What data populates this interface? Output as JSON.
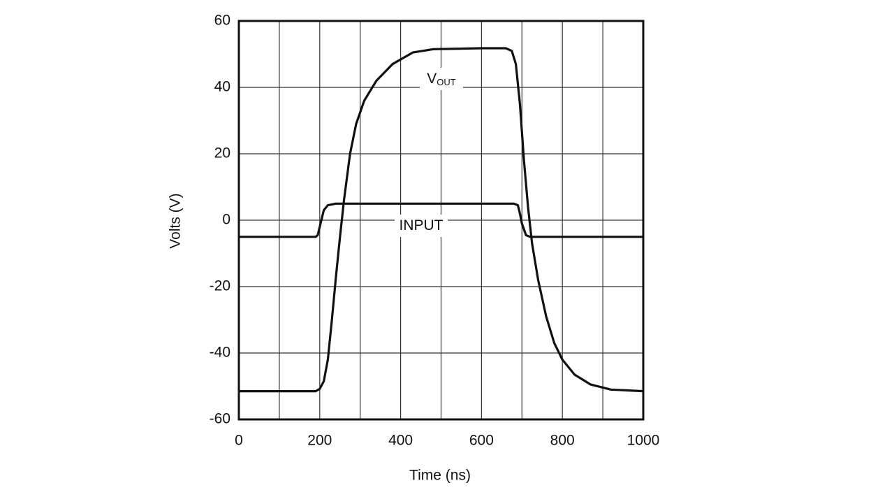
{
  "chart_data": {
    "type": "line",
    "xlabel": "Time (ns)",
    "ylabel": "Volts (V)",
    "xlim": [
      0,
      1000
    ],
    "xticks": [
      0,
      200,
      400,
      600,
      800,
      1000
    ],
    "ylim": [
      -60,
      60
    ],
    "yticks": [
      -60,
      -40,
      -20,
      0,
      20,
      40,
      60
    ],
    "grid": true,
    "series": [
      {
        "name": "V",
        "subscript": "OUT",
        "color": "#111111",
        "x": [
          0,
          190,
          200,
          210,
          220,
          230,
          240,
          250,
          260,
          275,
          290,
          310,
          340,
          380,
          430,
          480,
          600,
          660,
          675,
          685,
          695,
          705,
          715,
          725,
          740,
          760,
          780,
          800,
          830,
          870,
          920,
          1000
        ],
        "values": [
          -51.5,
          -51.5,
          -50.8,
          -48.5,
          -42,
          -30,
          -17,
          -5,
          6,
          20,
          29,
          36,
          42,
          47,
          50.5,
          51.5,
          51.8,
          51.8,
          51,
          47,
          35,
          18,
          4,
          -7,
          -18,
          -29,
          -37,
          -42,
          -46.5,
          -49.5,
          -51,
          -51.5
        ]
      },
      {
        "name": "INPUT",
        "color": "#111111",
        "x": [
          0,
          190,
          195,
          200,
          210,
          220,
          240,
          680,
          690,
          695,
          700,
          710,
          720,
          1000
        ],
        "values": [
          -5,
          -5,
          -4.5,
          -2,
          3,
          4.5,
          5,
          5,
          4.5,
          2,
          -1,
          -4.5,
          -5,
          -5
        ]
      }
    ]
  }
}
